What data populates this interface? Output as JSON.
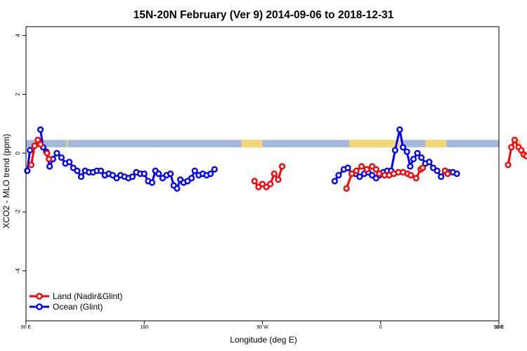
{
  "chart_data": {
    "type": "line",
    "title": "15N-20N February (Ver 9)   2014-09-06 to 2018-12-31",
    "xlabel": "Longitude (deg E)",
    "ylabel": "XCO2 - MLO trend (ppm)",
    "xlim": [
      90,
      450
    ],
    "ylim": [
      -5.7,
      4.3
    ],
    "x_ticks": [
      {
        "value": 90,
        "label": "90 E"
      },
      {
        "value": 180,
        "label": "180"
      },
      {
        "value": 270,
        "label": "90 W"
      },
      {
        "value": 360,
        "label": "0"
      },
      {
        "value": 450,
        "label": "90 E"
      },
      {
        "value": 540,
        "label": "180"
      }
    ],
    "y_ticks": [
      {
        "value": 4,
        "label": "4"
      },
      {
        "value": 2,
        "label": "2"
      },
      {
        "value": 0,
        "label": "0"
      },
      {
        "value": -2,
        "label": "-2"
      },
      {
        "value": -4,
        "label": "-4"
      }
    ],
    "grid": false,
    "legend_position": "bottom-left",
    "map_band": {
      "y_range": [
        0.2,
        0.45
      ],
      "ocean_color": "#a3b8dc",
      "land_color": "#f7d774",
      "land_segments": [
        [
          97,
          99.5
        ],
        [
          121,
          122
        ],
        [
          254,
          270
        ],
        [
          336,
          376
        ],
        [
          394,
          410
        ],
        [
          463,
          466.5
        ]
      ]
    },
    "series": [
      {
        "name": "Land (Nadir&Glint)",
        "color": "#ff0000",
        "segments": [
          [
            [
              94,
              -0.4
            ],
            [
              96.5,
              0.25
            ],
            [
              99,
              0.45
            ],
            [
              101,
              0.3
            ]
          ],
          [
            [
              106,
              0
            ],
            [
              107.5,
              -0.2
            ]
          ],
          [
            [
              264,
              -0.95
            ],
            [
              267,
              -1.15
            ],
            [
              270,
              -1.05
            ],
            [
              273,
              -1.15
            ],
            [
              276,
              -1.05
            ],
            [
              279,
              -0.7
            ],
            [
              282,
              -0.9
            ],
            [
              285,
              -0.45
            ]
          ],
          [
            [
              334,
              -1.2
            ],
            [
              338,
              -0.7
            ],
            [
              341.5,
              -0.6
            ],
            [
              345.5,
              -0.45
            ],
            [
              349.5,
              -0.55
            ],
            [
              353.5,
              -0.45
            ]
          ],
          [
            [
              356.5,
              -0.55
            ],
            [
              359,
              -0.7
            ],
            [
              363,
              -0.75
            ],
            [
              366.5,
              -0.75
            ],
            [
              370,
              -0.7
            ],
            [
              373.5,
              -0.65
            ],
            [
              377,
              -0.65
            ],
            [
              380.5,
              -0.7
            ],
            [
              383,
              -0.75
            ],
            [
              387,
              -0.85
            ],
            [
              390.5,
              -0.55
            ],
            [
              392,
              -0.5
            ]
          ],
          [
            [
              409,
              -0.6
            ],
            [
              411,
              -0.7
            ]
          ],
          [
            [
              457,
              -0.4
            ],
            [
              459.5,
              0.2
            ],
            [
              462,
              0.45
            ],
            [
              465,
              0.2
            ],
            [
              467,
              0.1
            ],
            [
              469,
              -0.05
            ],
            [
              471,
              -0.1
            ]
          ]
        ]
      },
      {
        "name": "Ocean (Glint)",
        "color": "#0000ff",
        "segments": [
          [
            [
              91,
              -0.6
            ],
            [
              93,
              0.1
            ]
          ],
          [
            [
              101,
              0.8
            ],
            [
              103,
              0.2
            ],
            [
              105.5,
              0.05
            ],
            [
              108,
              -0.45
            ],
            [
              110.5,
              -0.2
            ],
            [
              113.5,
              0
            ],
            [
              117,
              -0.15
            ],
            [
              120,
              -0.35
            ],
            [
              123,
              -0.3
            ],
            [
              126,
              -0.5
            ],
            [
              129,
              -0.6
            ],
            [
              132,
              -0.8
            ],
            [
              135,
              -0.6
            ],
            [
              138,
              -0.65
            ],
            [
              141,
              -0.65
            ],
            [
              144,
              -0.6
            ],
            [
              147,
              -0.6
            ],
            [
              150,
              -0.75
            ],
            [
              153,
              -0.7
            ],
            [
              156,
              -0.75
            ],
            [
              159,
              -0.85
            ],
            [
              162,
              -0.75
            ],
            [
              165,
              -0.8
            ],
            [
              168,
              -0.85
            ],
            [
              171,
              -0.8
            ],
            [
              174,
              -0.65
            ],
            [
              177,
              -0.7
            ],
            [
              180,
              -0.7
            ],
            [
              183,
              -0.95
            ],
            [
              186,
              -1.0
            ],
            [
              188.5,
              -0.6
            ],
            [
              191,
              -0.7
            ],
            [
              194,
              -0.85
            ],
            [
              197,
              -0.75
            ],
            [
              200,
              -0.7
            ],
            [
              202.5,
              -1.1
            ],
            [
              205,
              -1.2
            ],
            [
              207.5,
              -0.9
            ],
            [
              210,
              -1.0
            ],
            [
              213,
              -0.95
            ],
            [
              216,
              -0.85
            ],
            [
              218.5,
              -0.6
            ],
            [
              221.5,
              -0.75
            ],
            [
              224.5,
              -0.7
            ],
            [
              227.5,
              -0.75
            ],
            [
              230.5,
              -0.7
            ],
            [
              233.5,
              -0.55
            ]
          ],
          [
            [
              325,
              -0.95
            ],
            [
              328,
              -0.75
            ],
            [
              332,
              -0.55
            ],
            [
              335,
              -0.5
            ],
            [
              338,
              -0.7
            ],
            [
              341,
              -0.7
            ],
            [
              344,
              -0.8
            ],
            [
              347.5,
              -0.7
            ],
            [
              350.5,
              -0.65
            ],
            [
              353.5,
              -0.75
            ],
            [
              356.5,
              -0.85
            ],
            [
              359,
              -0.75
            ],
            [
              362,
              -0.65
            ],
            [
              365,
              -0.6
            ]
          ],
          [
            [
              368,
              -0.6
            ],
            [
              371,
              0.1
            ],
            [
              374.5,
              0.8
            ],
            [
              377,
              0.2
            ],
            [
              380,
              0.05
            ],
            [
              382.5,
              -0.45
            ],
            [
              385,
              -0.2
            ],
            [
              388,
              0
            ],
            [
              391,
              -0.15
            ],
            [
              394,
              -0.35
            ],
            [
              397,
              -0.3
            ],
            [
              400,
              -0.5
            ],
            [
              403,
              -0.6
            ],
            [
              406,
              -0.8
            ],
            [
              409,
              -0.6
            ],
            [
              412,
              -0.65
            ],
            [
              415,
              -0.65
            ],
            [
              418,
              -0.7
            ]
          ]
        ]
      }
    ]
  }
}
